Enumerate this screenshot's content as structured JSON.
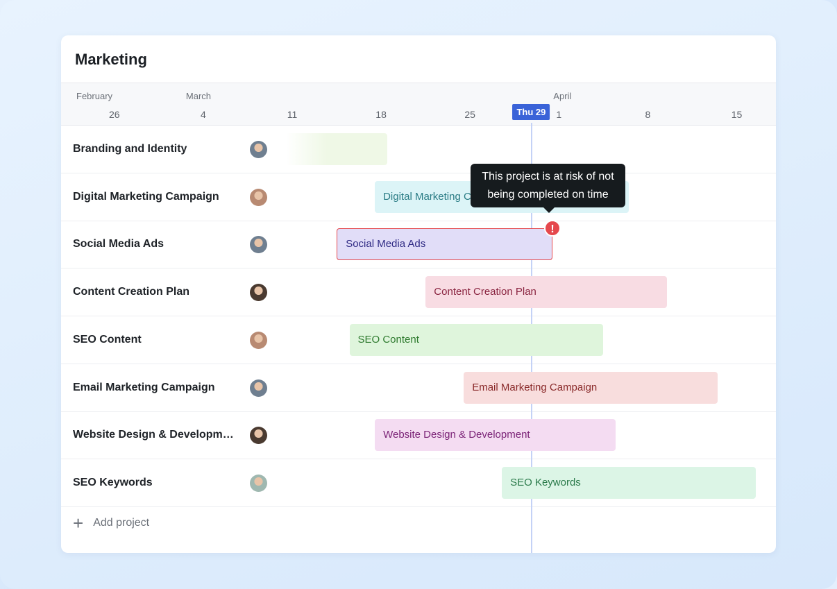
{
  "title": "Marketing",
  "timeline": {
    "months": [
      {
        "label": "February",
        "day": -3
      },
      {
        "label": "March",
        "day": 4
      },
      {
        "label": "April",
        "day": 32
      }
    ],
    "days": [
      {
        "label": "26",
        "day": -3
      },
      {
        "label": "4",
        "day": 4
      },
      {
        "label": "11",
        "day": 11
      },
      {
        "label": "18",
        "day": 18
      },
      {
        "label": "25",
        "day": 25
      },
      {
        "label": "1",
        "day": 32
      },
      {
        "label": "8",
        "day": 39
      },
      {
        "label": "15",
        "day": 46
      }
    ],
    "today_label": "Thu 29",
    "today_day": 29
  },
  "projects": [
    {
      "name": "Branding and Identity",
      "avatar": "#6f7f90",
      "bar_label": "",
      "start": "Mar 11",
      "end": "Mar 18",
      "bg": "#eff8e6",
      "fg": "#2e7a2e",
      "fade": true
    },
    {
      "name": "Digital Marketing Campaign",
      "avatar": "#b88a72",
      "bar_label": "Digital Marketing Campaign",
      "start": "Mar 18",
      "end": "Apr 6",
      "bg": "#dcf4f7",
      "fg": "#2a7c85"
    },
    {
      "name": "Social Media Ads",
      "avatar": "#6f7f90",
      "bar_label": "Social Media Ads",
      "start": "Mar 15",
      "end": "Mar 31",
      "bg": "#e1ddf8",
      "fg": "#2f2a84",
      "at_risk": true
    },
    {
      "name": "Content Creation Plan",
      "avatar": "#4a3a30",
      "bar_label": "Content Creation Plan",
      "start": "Mar 22",
      "end": "Apr 9",
      "bg": "#f8dce3",
      "fg": "#8a2440"
    },
    {
      "name": "SEO Content",
      "avatar": "#b88a72",
      "bar_label": "SEO Content",
      "start": "Mar 16",
      "end": "Apr 4",
      "bg": "#dff5dc",
      "fg": "#2e7a2e"
    },
    {
      "name": "Email Marketing Campaign",
      "avatar": "#6f7f90",
      "bar_label": "Email Marketing Campaign",
      "start": "Mar 25",
      "end": "Apr 13",
      "bg": "#f8dddd",
      "fg": "#8a2a2a"
    },
    {
      "name": "Website Design & Development",
      "avatar": "#4a3a30",
      "bar_label": "Website Design & Development",
      "start": "Mar 18",
      "end": "Apr 5",
      "bg": "#f4dcf2",
      "fg": "#7a2276"
    },
    {
      "name": "SEO Keywords",
      "avatar": "#9fb8b0",
      "bar_label": "SEO Keywords",
      "start": "Mar 28",
      "end": "Apr 16",
      "bg": "#dcf5e6",
      "fg": "#2a7a4a"
    }
  ],
  "tooltip": {
    "line1": "This project is at risk of not",
    "line2": "being completed on time"
  },
  "alert_icon": "exclamation-icon",
  "add_project": "Add project",
  "colors": {
    "accent": "#3a63d8",
    "risk": "#e5484d"
  }
}
